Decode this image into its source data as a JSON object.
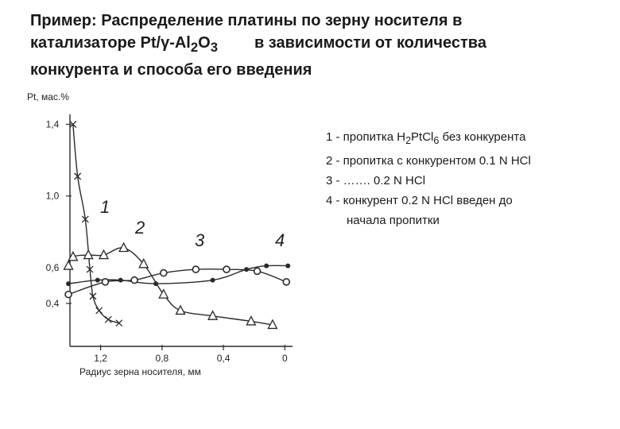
{
  "slide": {
    "title_line1": "Пример: Распределение платины по зерну носителя в",
    "title_line2_a": "катализаторе Pt/",
    "title_gamma": "γ",
    "title_line2_b": "-Al",
    "title_sub1": "2",
    "title_line2_c": "O",
    "title_sub2": "3",
    "title_line2_d": "в зависимости от количества",
    "title_line3": "конкурента и способа его введения"
  },
  "legend": {
    "item1_a": "1 - пропитка H",
    "item1_sub1": "2",
    "item1_b": "PtCl",
    "item1_sub2": "6",
    "item1_c": " без конкурента",
    "item2": "2 - пропитка с конкурентом 0.1 N HCl",
    "item3": "3 - ……. 0.2 N HCl",
    "item4_line1": "4 - конкурент 0.2 N HCl введен до",
    "item4_line2": "начала пропитки"
  },
  "chart_data": {
    "type": "line",
    "ylabel": "Pt, мас.%",
    "xlabel": "Радиус зерна носителя, мм",
    "x_axis": {
      "range": [
        1.4,
        -0.05
      ],
      "ticks": [
        1.2,
        0.8,
        0.4,
        0
      ],
      "tick_labels": [
        "1,2",
        "0,8",
        "0,4",
        "0"
      ]
    },
    "y_axis": {
      "range": [
        0.16,
        1.42
      ],
      "ticks": [
        1.4,
        1.0,
        0.6,
        0.4
      ],
      "tick_labels": [
        "1,4",
        "1,0",
        "0,6",
        "0,4"
      ]
    },
    "series": [
      {
        "name": "1",
        "marker": "x",
        "points": [
          [
            1.38,
            1.4
          ],
          [
            1.35,
            1.11
          ],
          [
            1.3,
            0.87
          ],
          [
            1.27,
            0.59
          ],
          [
            1.25,
            0.44
          ],
          [
            1.21,
            0.36
          ],
          [
            1.15,
            0.31
          ],
          [
            1.08,
            0.29
          ]
        ]
      },
      {
        "name": "2",
        "marker": "triangle",
        "points": [
          [
            1.41,
            0.61
          ],
          [
            1.38,
            0.66
          ],
          [
            1.28,
            0.67
          ],
          [
            1.18,
            0.67
          ],
          [
            1.05,
            0.71
          ],
          [
            0.92,
            0.62
          ],
          [
            0.79,
            0.45
          ],
          [
            0.68,
            0.36
          ],
          [
            0.47,
            0.33
          ],
          [
            0.22,
            0.3
          ],
          [
            0.08,
            0.28
          ]
        ]
      },
      {
        "name": "3",
        "marker": "circle",
        "points": [
          [
            1.41,
            0.45
          ],
          [
            1.17,
            0.52
          ],
          [
            0.98,
            0.53
          ],
          [
            0.79,
            0.57
          ],
          [
            0.58,
            0.59
          ],
          [
            0.38,
            0.59
          ],
          [
            0.18,
            0.58
          ],
          [
            -0.01,
            0.52
          ]
        ]
      },
      {
        "name": "4",
        "marker": "dot",
        "points": [
          [
            1.41,
            0.51
          ],
          [
            1.22,
            0.53
          ],
          [
            1.07,
            0.53
          ],
          [
            0.84,
            0.51
          ],
          [
            0.47,
            0.53
          ],
          [
            0.25,
            0.59
          ],
          [
            0.12,
            0.61
          ],
          [
            -0.02,
            0.61
          ]
        ]
      }
    ]
  }
}
